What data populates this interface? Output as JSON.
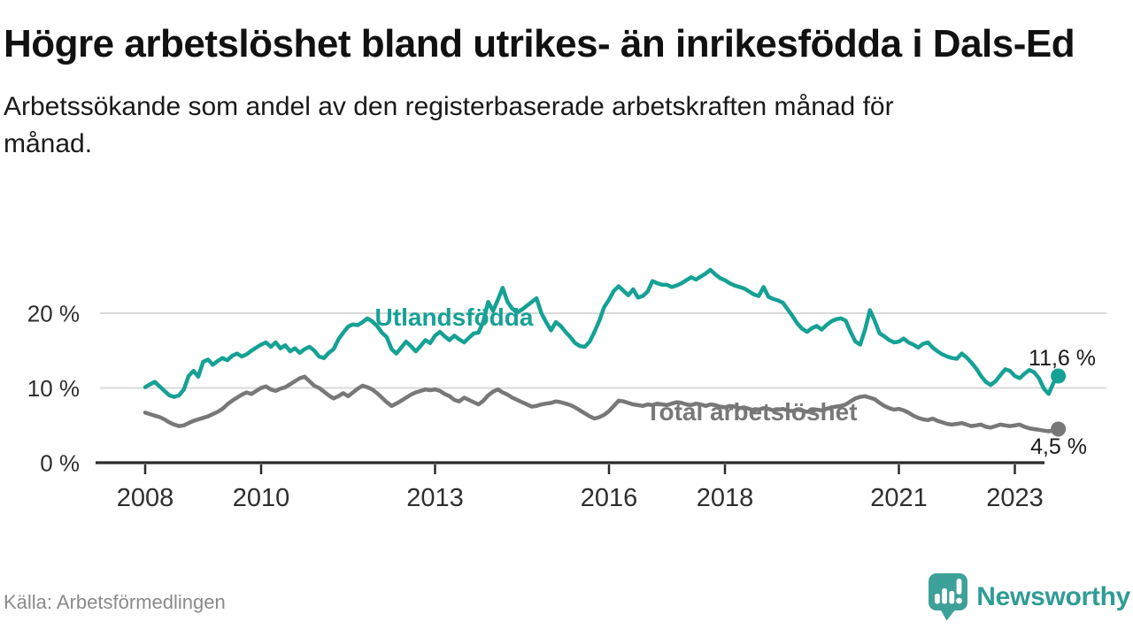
{
  "header": {
    "title": "Högre arbetslöshet bland utrikes- än inrikesfödda i Dals-Ed",
    "subtitle": "Arbetssökande som andel av den registerbaserade arbetskraften månad för månad."
  },
  "footer": {
    "source": "Källa: Arbetsförmedlingen",
    "brand": "Newsworthy"
  },
  "colors": {
    "series_foreign_born": "#16a195",
    "series_total": "#787878",
    "gridline": "#dadada",
    "axis": "#2b2b2b",
    "tick_label": "#2e2e2e",
    "value_label": "#1a1a1a",
    "logo_bubble": "#3da099",
    "logo_wordmark": "#2f9c95"
  },
  "chart_data": {
    "type": "line",
    "title": "Högre arbetslöshet bland utrikes- än inrikesfödda i Dals-Ed",
    "subtitle": "Arbetssökande som andel av den registerbaserade arbetskraften månad för månad.",
    "x_unit": "month",
    "x_start": "2008-01",
    "x_end": "2023-10",
    "xlabel": "",
    "ylabel": "",
    "ylim": [
      0,
      27
    ],
    "grid": "horizontal",
    "legend_position": "inline-labels",
    "y_ticks": [
      {
        "value": 0,
        "label": "0 %"
      },
      {
        "value": 10,
        "label": "10 %"
      },
      {
        "value": 20,
        "label": "20 %"
      }
    ],
    "x_ticks": [
      2008,
      2010,
      2013,
      2016,
      2018,
      2021,
      2023
    ],
    "series": [
      {
        "name": "Utlandsfödda",
        "end_label": "11,6 %",
        "last_value": 11.6,
        "values": [
          10.1,
          10.5,
          10.8,
          10.2,
          9.6,
          9.0,
          8.8,
          9.0,
          9.8,
          11.6,
          12.3,
          11.5,
          13.5,
          13.8,
          13.1,
          13.6,
          14.0,
          13.7,
          14.3,
          14.6,
          14.2,
          14.5,
          15.0,
          15.4,
          15.8,
          16.1,
          15.5,
          16.1,
          15.3,
          15.7,
          14.9,
          15.3,
          14.7,
          15.2,
          15.5,
          15.0,
          14.2,
          14.0,
          14.7,
          15.2,
          16.5,
          17.4,
          18.2,
          18.5,
          18.4,
          18.8,
          19.3,
          18.9,
          18.3,
          17.4,
          16.8,
          15.2,
          14.6,
          15.4,
          16.2,
          15.6,
          14.9,
          15.6,
          16.4,
          16.0,
          17.0,
          17.5,
          16.9,
          16.4,
          17.0,
          16.5,
          16.1,
          16.7,
          17.3,
          17.4,
          18.9,
          21.5,
          20.3,
          21.8,
          23.4,
          21.5,
          20.6,
          20.1,
          20.5,
          21.0,
          21.5,
          22.0,
          20.0,
          18.8,
          17.7,
          18.8,
          18.3,
          17.5,
          16.8,
          16.0,
          15.6,
          15.5,
          16.2,
          17.5,
          19.0,
          20.8,
          21.8,
          23.0,
          23.6,
          23.0,
          22.4,
          23.2,
          22.1,
          22.3,
          22.9,
          24.3,
          24.0,
          23.8,
          23.8,
          23.5,
          23.7,
          24.0,
          24.4,
          24.8,
          24.5,
          24.9,
          25.3,
          25.8,
          25.2,
          24.7,
          24.4,
          24.0,
          23.7,
          23.5,
          23.3,
          22.9,
          22.5,
          22.3,
          23.5,
          22.2,
          21.9,
          21.7,
          21.4,
          20.5,
          19.6,
          18.6,
          17.9,
          17.5,
          18.0,
          18.3,
          17.8,
          18.4,
          18.9,
          19.2,
          19.3,
          19.0,
          17.5,
          16.2,
          15.8,
          17.8,
          20.4,
          19.0,
          17.3,
          16.9,
          16.4,
          16.1,
          16.2,
          16.6,
          16.1,
          15.8,
          15.4,
          15.9,
          16.1,
          15.4,
          14.9,
          14.5,
          14.2,
          14.0,
          13.9,
          14.6,
          14.1,
          13.4,
          12.6,
          11.6,
          10.8,
          10.4,
          10.9,
          11.7,
          12.5,
          12.3,
          11.6,
          11.3,
          11.9,
          12.4,
          12.1,
          11.3,
          9.9,
          9.2,
          10.7,
          11.6
        ]
      },
      {
        "name": "Total arbetslöshet",
        "end_label": "4,5 %",
        "last_value": 4.5,
        "values": [
          6.7,
          6.5,
          6.3,
          6.1,
          5.8,
          5.4,
          5.1,
          4.9,
          5.0,
          5.3,
          5.6,
          5.8,
          6.0,
          6.2,
          6.5,
          6.8,
          7.2,
          7.8,
          8.3,
          8.7,
          9.1,
          9.4,
          9.2,
          9.6,
          10.0,
          10.2,
          9.8,
          9.6,
          9.9,
          10.1,
          10.5,
          10.9,
          11.3,
          11.5,
          10.9,
          10.3,
          10.0,
          9.5,
          9.0,
          8.6,
          8.9,
          9.3,
          8.9,
          9.4,
          9.9,
          10.3,
          10.1,
          9.8,
          9.3,
          8.7,
          8.1,
          7.6,
          7.9,
          8.3,
          8.7,
          9.1,
          9.4,
          9.6,
          9.8,
          9.7,
          9.8,
          9.6,
          9.2,
          8.9,
          8.4,
          8.2,
          8.7,
          8.4,
          8.1,
          7.8,
          8.3,
          9.0,
          9.5,
          9.8,
          9.4,
          9.1,
          8.7,
          8.4,
          8.1,
          7.8,
          7.5,
          7.6,
          7.8,
          7.9,
          8.0,
          8.2,
          8.1,
          7.9,
          7.7,
          7.4,
          7.0,
          6.6,
          6.2,
          5.9,
          6.1,
          6.4,
          6.9,
          7.6,
          8.3,
          8.2,
          8.0,
          7.8,
          7.7,
          7.6,
          7.8,
          7.7,
          7.9,
          7.8,
          7.7,
          7.9,
          8.1,
          8.0,
          7.8,
          7.7,
          7.9,
          7.8,
          7.6,
          7.8,
          7.7,
          7.5,
          7.4,
          7.6,
          7.5,
          7.3,
          7.4,
          7.2,
          7.0,
          7.1,
          7.3,
          7.2,
          7.0,
          7.1,
          7.2,
          7.0,
          6.9,
          7.1,
          7.0,
          6.8,
          6.9,
          7.1,
          7.0,
          7.2,
          7.4,
          7.5,
          7.6,
          7.8,
          8.2,
          8.6,
          8.8,
          8.9,
          8.7,
          8.5,
          8.0,
          7.6,
          7.3,
          7.1,
          7.2,
          7.0,
          6.7,
          6.3,
          6.0,
          5.8,
          5.7,
          5.9,
          5.6,
          5.4,
          5.2,
          5.1,
          5.2,
          5.3,
          5.1,
          4.9,
          5.0,
          5.1,
          4.8,
          4.7,
          4.9,
          5.1,
          5.0,
          4.9,
          5.0,
          5.1,
          4.8,
          4.6,
          4.5,
          4.4,
          4.3,
          4.2,
          4.3,
          4.5
        ]
      }
    ]
  }
}
